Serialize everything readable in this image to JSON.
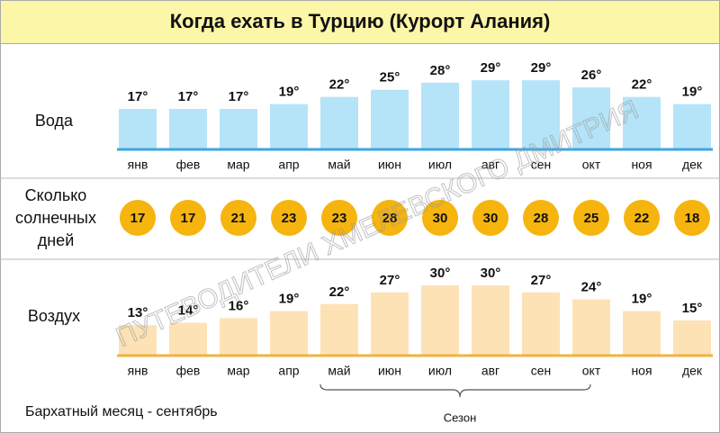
{
  "title": "Когда ехать в Турцию (Курорт Алания)",
  "watermark": "ПУТЕВОДИТЕЛИ ХМЕЛЕВСКОГО ДМИТРИЯ",
  "note": "Бархатный месяц - сентябрь",
  "season": {
    "label": "Сезон",
    "from": "май",
    "to": "окт"
  },
  "chart_data": [
    {
      "type": "bar",
      "label": "Вода",
      "categories": [
        "янв",
        "фев",
        "мар",
        "апр",
        "май",
        "июн",
        "июл",
        "авг",
        "сен",
        "окт",
        "ноя",
        "дек"
      ],
      "values": [
        17,
        17,
        17,
        19,
        22,
        25,
        28,
        29,
        29,
        26,
        22,
        19
      ],
      "value_labels": [
        "17°",
        "17°",
        "17°",
        "19°",
        "22°",
        "25°",
        "28°",
        "29°",
        "29°",
        "26°",
        "22°",
        "19°"
      ],
      "color": "#b5e4f8",
      "baseline_color": "#3ea6e0"
    },
    {
      "type": "dot",
      "label": [
        "Сколько",
        "солнечных",
        "дней"
      ],
      "values": [
        17,
        17,
        21,
        23,
        23,
        28,
        30,
        30,
        28,
        25,
        22,
        18
      ],
      "color": "#f6b40e"
    },
    {
      "type": "bar",
      "label": "Воздух",
      "categories": [
        "янв",
        "фев",
        "мар",
        "апр",
        "май",
        "июн",
        "июл",
        "авг",
        "сен",
        "окт",
        "ноя",
        "дек"
      ],
      "values": [
        13,
        14,
        16,
        19,
        22,
        27,
        30,
        30,
        27,
        24,
        19,
        15
      ],
      "value_labels": [
        "13°",
        "14°",
        "16°",
        "19°",
        "22°",
        "27°",
        "30°",
        "30°",
        "27°",
        "24°",
        "19°",
        "15°"
      ],
      "color": "#fde2b6",
      "baseline_color": "#f2b13e"
    }
  ]
}
